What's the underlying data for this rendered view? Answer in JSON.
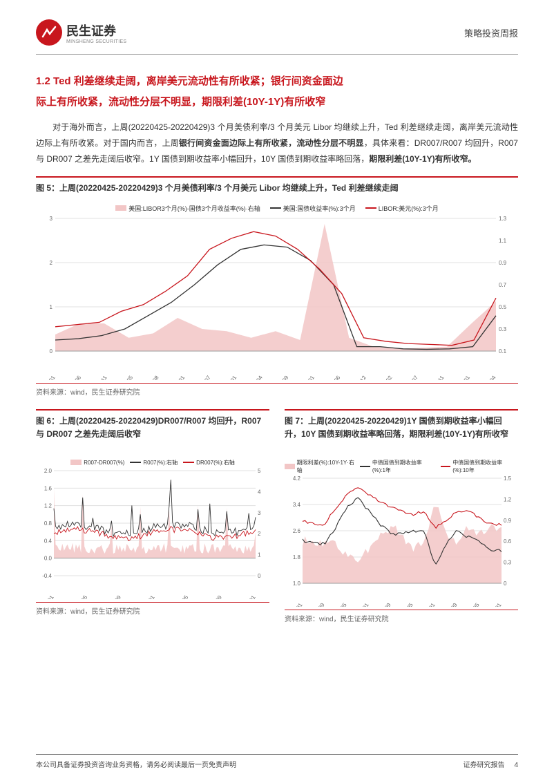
{
  "header": {
    "brand_cn": "民生证券",
    "brand_en": "MINSHENG SECURITIES",
    "report_type": "策略投资周报",
    "logo_color": "#c8161d"
  },
  "section": {
    "title_line1": "1.2 Ted 利差继续走阔，离岸美元流动性有所收紧；银行间资金面边",
    "title_line2": "际上有所收紧，流动性分层不明显，期限利差(10Y-1Y)有所收窄"
  },
  "paragraph": {
    "t1": "对于海外而言，上周(20220425-20220429)3 个月美债利率/3 个月美元 Libor 均继续上升，Ted 利差继续走阔，离岸美元流动性边际上有所收紧。对于国内而言，上周",
    "b1": "银行间资金面边际上有所收紧，流动性分层不明显",
    "t2": "，具体来看：DR007/R007 均回升，R007 与 DR007 之差先走阔后收窄。1Y 国债到期收益率小幅回升，10Y 国债到期收益率略回落，",
    "b2": "期限利差(10Y-1Y)有所收窄。"
  },
  "fig5": {
    "title": "图 5：上周(20220425-20220429)3 个月美债利率/3 个月美元 Libor 均继续上升，Ted 利差继续走阔",
    "source": "资料来源：wind，民生证券研究院",
    "legend": [
      {
        "label": "美国:LIBOR3个月(%)-国债3个月收益率(%)·右轴",
        "color": "#f2c6c6",
        "type": "area"
      },
      {
        "label": "美国:国债收益率(%):3个月",
        "color": "#333333",
        "type": "line"
      },
      {
        "label": "LIBOR:美元(%):3个月",
        "color": "#c8161d",
        "type": "line"
      }
    ],
    "y_left": {
      "min": 0,
      "max": 3,
      "ticks": [
        0,
        1,
        2,
        3
      ]
    },
    "y_right": {
      "min": 0.1,
      "max": 1.3,
      "ticks": [
        0.1,
        0.3,
        0.5,
        0.7,
        0.9,
        1.1,
        1.3
      ]
    },
    "x_labels": [
      "2016-01",
      "2016-06",
      "2016-11",
      "2017-05",
      "2017-08",
      "2018-01",
      "2018-07",
      "2019-01",
      "2019-04",
      "2019-09",
      "2020-01",
      "2020-06",
      "2020-12",
      "2021-02",
      "2021-07",
      "2021-11",
      "2022-01",
      "2022-04"
    ],
    "series_area": [
      0.25,
      0.35,
      0.35,
      0.22,
      0.26,
      0.4,
      0.3,
      0.28,
      0.22,
      0.28,
      0.2,
      1.25,
      0.22,
      0.14,
      0.12,
      0.13,
      0.14,
      0.35,
      0.55
    ],
    "series_black": [
      0.25,
      0.28,
      0.35,
      0.5,
      0.8,
      1.1,
      1.5,
      1.95,
      2.3,
      2.4,
      2.35,
      2.05,
      1.5,
      0.1,
      0.1,
      0.05,
      0.04,
      0.05,
      0.1,
      0.8
    ],
    "series_red": [
      0.55,
      0.6,
      0.65,
      0.9,
      1.05,
      1.35,
      1.7,
      2.3,
      2.55,
      2.7,
      2.6,
      2.3,
      1.85,
      1.3,
      0.3,
      0.22,
      0.17,
      0.15,
      0.13,
      0.25,
      1.2
    ]
  },
  "fig6": {
    "title": "图 6：上周(20220425-20220429)DR007/R007 均回升，R007 与 DR007 之差先走阔后收窄",
    "source": "资料来源：wind，民生证券研究院",
    "legend": [
      {
        "label": "R007-DR007(%)",
        "color": "#f2c6c6",
        "type": "area"
      },
      {
        "label": "R007(%):右轴",
        "color": "#333333",
        "type": "line"
      },
      {
        "label": "DR007(%):右轴",
        "color": "#c8161d",
        "type": "line"
      }
    ],
    "y_left": {
      "min": -0.4,
      "max": 2.0,
      "ticks": [
        -0.4,
        0.0,
        0.4,
        0.8,
        1.2,
        1.6,
        2.0
      ]
    },
    "y_right": {
      "min": 0,
      "max": 5,
      "ticks": [
        0,
        1,
        2,
        3,
        4,
        5
      ]
    },
    "x_labels": [
      "2020-01",
      "2020-05",
      "2020-09",
      "2021-01",
      "2021-05",
      "2021-09",
      "2022-01"
    ]
  },
  "fig7": {
    "title": "图 7：上周(20220425-20220429)1Y 国债到期收益率小幅回升，10Y 国债到期收益率略回落，期限利差(10Y-1Y)有所收窄",
    "source": "资料来源：wind，民生证券研究院",
    "legend": [
      {
        "label": "期限利差(%):10Y-1Y·右轴",
        "color": "#f2c6c6",
        "type": "area"
      },
      {
        "label": "中债国债到期收益率(%):1年",
        "color": "#333333",
        "type": "line"
      },
      {
        "label": "中债国债到期收益率(%):10年",
        "color": "#c8161d",
        "type": "line"
      }
    ],
    "y_left": {
      "min": 1.0,
      "max": 4.2,
      "ticks": [
        1.0,
        1.8,
        2.6,
        3.4,
        4.2
      ]
    },
    "y_right": {
      "min": 0,
      "max": 1.5,
      "ticks": [
        0,
        0.3,
        0.6,
        0.9,
        1.2,
        1.5
      ]
    },
    "x_labels": [
      "2016-01",
      "2016-09",
      "2017-05",
      "2018-01",
      "2018-09",
      "2019-05",
      "2020-01",
      "2020-09",
      "2021-05",
      "2022-01"
    ]
  },
  "footer": {
    "left": "本公司具备证券投资咨询业务资格，请务必阅读最后一页免责声明",
    "right_label": "证券研究报告",
    "page": "4"
  },
  "colors": {
    "brand": "#c8161d",
    "pink_area": "#f2c6c6",
    "black_line": "#333333",
    "grid": "#e0e0e0",
    "axis_text": "#666666"
  }
}
